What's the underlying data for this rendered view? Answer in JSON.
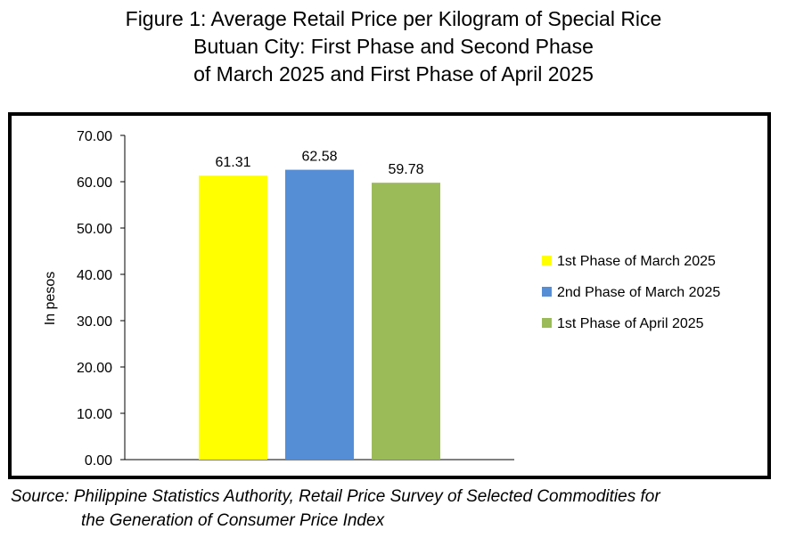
{
  "title_lines": [
    "Figure 1: Average Retail Price per Kilogram of Special Rice",
    "Butuan City: First Phase and Second Phase",
    "of March 2025 and First Phase of April 2025"
  ],
  "source_lines": [
    "Source: Philippine Statistics Authority, Retail Price Survey of Selected Commodities for",
    "the Generation of Consumer Price Index"
  ],
  "chart_data": {
    "type": "bar",
    "categories": [
      "1st Phase of March 2025",
      "2nd Phase of March 2025",
      "1st Phase of April 2025"
    ],
    "values": [
      61.31,
      62.58,
      59.78
    ],
    "value_labels": [
      "61.31",
      "62.58",
      "59.78"
    ],
    "colors": [
      "#ffff00",
      "#558ed5",
      "#9bbb59"
    ],
    "ylabel": "In pesos",
    "ylim": [
      0,
      70
    ],
    "yticks": [
      "0.00",
      "10.00",
      "20.00",
      "30.00",
      "40.00",
      "50.00",
      "60.00",
      "70.00"
    ],
    "grid": false,
    "legend": "right",
    "legend_entries": [
      "1st Phase of March 2025",
      "2nd Phase of March 2025",
      "1st Phase of April 2025"
    ]
  }
}
